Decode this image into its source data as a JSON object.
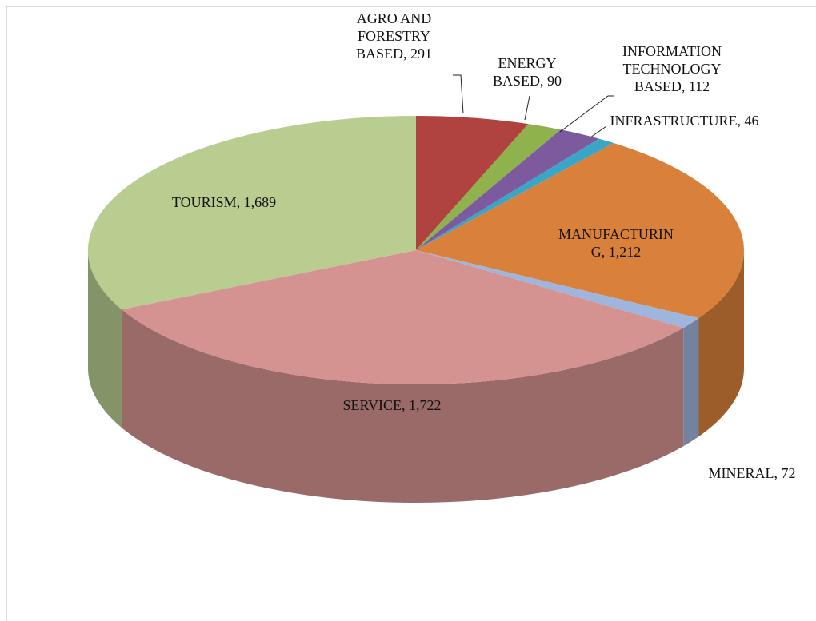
{
  "chart_data": {
    "type": "pie",
    "categories": [
      "AGRO AND FORESTRY BASED",
      "ENERGY BASED",
      "INFORMATION TECHNOLOGY BASED",
      "INFRASTRUCTURE",
      "MANUFACTURING",
      "MINERAL",
      "SERVICE",
      "TOURISM"
    ],
    "values": [
      291,
      90,
      112,
      46,
      1212,
      72,
      1722,
      1689
    ],
    "value_labels": [
      "291",
      "90",
      "112",
      "46",
      "1,212",
      "72",
      "1,722",
      "1,689"
    ],
    "colors": [
      "#b0433f",
      "#8fb24c",
      "#7d5a9e",
      "#3aa5c6",
      "#d9813b",
      "#9fb5dd",
      "#d49391",
      "#b9cd91"
    ]
  }
}
